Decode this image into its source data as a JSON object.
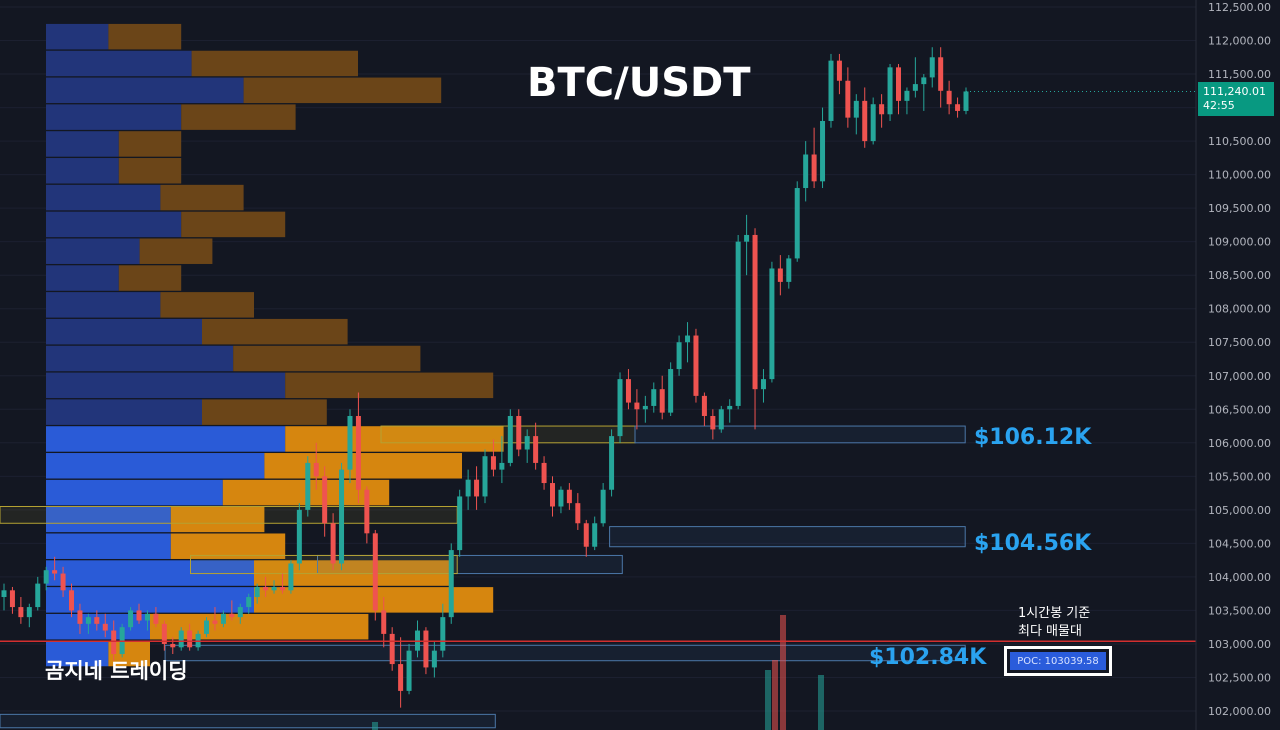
{
  "title": "BTC/USDT",
  "brand": "곰지네 트레이딩",
  "poc": {
    "note_line1": "1시간봉 기준",
    "note_line2": "최다 매물대",
    "label": "POC: 103039.58",
    "price": 103039.58
  },
  "last_price": {
    "value": "111,240.01",
    "countdown": "42:55",
    "price": 111240.01
  },
  "levels": [
    {
      "label": "$106.12K",
      "price": 106120
    },
    {
      "label": "$104.56K",
      "price": 104560
    },
    {
      "label": "$102.84K",
      "price": 102840
    }
  ],
  "colors": {
    "background": "#131722",
    "up": "#26a69a",
    "down": "#ef5350",
    "level_label": "#2aa3f0",
    "poc_line": "#d32f2f",
    "vp_buy": "#2a5bd7",
    "vp_sell": "#d6860f",
    "last_price_tag": "#089981"
  },
  "chart_data": {
    "type": "candlestick",
    "symbol": "BTC/USDT",
    "ylim": [
      101900,
      112600
    ],
    "y_ticks": [
      "112,500.00",
      "112,000.00",
      "111,500.00",
      "111,000.00",
      "110,500.00",
      "110,000.00",
      "109,500.00",
      "109,000.00",
      "108,500.00",
      "108,000.00",
      "107,500.00",
      "107,000.00",
      "106,500.00",
      "106,000.00",
      "105,500.00",
      "105,000.00",
      "104,500.00",
      "104,000.00",
      "103,500.00",
      "103,000.00",
      "102,500.00",
      "102,000.00"
    ],
    "volume_profile": [
      {
        "price": 112050,
        "buy": 6,
        "sell": 7
      },
      {
        "price": 111650,
        "buy": 14,
        "sell": 16
      },
      {
        "price": 111250,
        "buy": 19,
        "sell": 19
      },
      {
        "price": 110850,
        "buy": 13,
        "sell": 11
      },
      {
        "price": 110450,
        "buy": 7,
        "sell": 6
      },
      {
        "price": 110050,
        "buy": 7,
        "sell": 6
      },
      {
        "price": 109650,
        "buy": 11,
        "sell": 8
      },
      {
        "price": 109250,
        "buy": 13,
        "sell": 10
      },
      {
        "price": 108850,
        "buy": 9,
        "sell": 7
      },
      {
        "price": 108450,
        "buy": 7,
        "sell": 6
      },
      {
        "price": 108050,
        "buy": 11,
        "sell": 9
      },
      {
        "price": 107650,
        "buy": 15,
        "sell": 14
      },
      {
        "price": 107250,
        "buy": 18,
        "sell": 18
      },
      {
        "price": 106850,
        "buy": 23,
        "sell": 20
      },
      {
        "price": 106450,
        "buy": 15,
        "sell": 12
      },
      {
        "price": 106050,
        "buy": 23,
        "sell": 21
      },
      {
        "price": 105650,
        "buy": 21,
        "sell": 19
      },
      {
        "price": 105250,
        "buy": 17,
        "sell": 16
      },
      {
        "price": 104850,
        "buy": 12,
        "sell": 9
      },
      {
        "price": 104450,
        "buy": 12,
        "sell": 11
      },
      {
        "price": 104050,
        "buy": 20,
        "sell": 19
      },
      {
        "price": 103650,
        "buy": 20,
        "sell": 23
      },
      {
        "price": 103250,
        "buy": 10,
        "sell": 21
      },
      {
        "price": 102850,
        "buy": 6,
        "sell": 4
      }
    ],
    "zones": [
      {
        "kind": "yellow",
        "low": 106000,
        "high": 106250,
        "from": 0.3,
        "to": 0.5
      },
      {
        "kind": "blue",
        "low": 106000,
        "high": 106250,
        "from": 0.5,
        "to": 0.76
      },
      {
        "kind": "blue",
        "low": 104450,
        "high": 104750,
        "from": 0.48,
        "to": 0.76
      },
      {
        "kind": "yellow",
        "low": 104800,
        "high": 105050,
        "from": 0.0,
        "to": 0.36
      },
      {
        "kind": "blue",
        "low": 104050,
        "high": 104320,
        "from": 0.25,
        "to": 0.49
      },
      {
        "kind": "yellow",
        "low": 104050,
        "high": 104320,
        "from": 0.15,
        "to": 0.36
      },
      {
        "kind": "blue",
        "low": 102750,
        "high": 102980,
        "from": 0.13,
        "to": 0.76
      },
      {
        "kind": "blue",
        "low": 101750,
        "high": 101950,
        "from": 0.0,
        "to": 0.39
      }
    ],
    "candles": [
      [
        103700,
        103900,
        103500,
        103800
      ],
      [
        103800,
        103850,
        103450,
        103550
      ],
      [
        103550,
        103700,
        103300,
        103400
      ],
      [
        103400,
        103600,
        103250,
        103550
      ],
      [
        103550,
        104000,
        103500,
        103900
      ],
      [
        103900,
        104150,
        103800,
        104100
      ],
      [
        104100,
        104300,
        103950,
        104050
      ],
      [
        104050,
        104150,
        103700,
        103800
      ],
      [
        103800,
        103900,
        103400,
        103500
      ],
      [
        103500,
        103600,
        103150,
        103300
      ],
      [
        103300,
        103450,
        103150,
        103400
      ],
      [
        103400,
        103500,
        103200,
        103300
      ],
      [
        103300,
        103450,
        103100,
        103200
      ],
      [
        103200,
        103350,
        102750,
        102850
      ],
      [
        102850,
        103300,
        102800,
        103250
      ],
      [
        103250,
        103550,
        103200,
        103500
      ],
      [
        103500,
        103600,
        103300,
        103350
      ],
      [
        103350,
        103500,
        103200,
        103450
      ],
      [
        103450,
        103550,
        103250,
        103300
      ],
      [
        103300,
        103350,
        102900,
        103000
      ],
      [
        103000,
        103100,
        102850,
        102950
      ],
      [
        102950,
        103250,
        102900,
        103200
      ],
      [
        103200,
        103300,
        102900,
        102950
      ],
      [
        102950,
        103200,
        102900,
        103150
      ],
      [
        103150,
        103400,
        103100,
        103350
      ],
      [
        103350,
        103550,
        103200,
        103300
      ],
      [
        103300,
        103500,
        103250,
        103450
      ],
      [
        103450,
        103650,
        103350,
        103400
      ],
      [
        103400,
        103600,
        103300,
        103550
      ],
      [
        103550,
        103750,
        103450,
        103700
      ],
      [
        103700,
        103900,
        103600,
        103850
      ],
      [
        103850,
        104000,
        103700,
        103800
      ],
      [
        103800,
        103950,
        103750,
        103850
      ],
      [
        103850,
        104050,
        103750,
        103800
      ],
      [
        103800,
        104250,
        103750,
        104200
      ],
      [
        104200,
        105100,
        104100,
        105000
      ],
      [
        105000,
        105800,
        104900,
        105700
      ],
      [
        105700,
        106000,
        105300,
        105500
      ],
      [
        105500,
        105650,
        104600,
        104800
      ],
      [
        104800,
        104950,
        104100,
        104200
      ],
      [
        104200,
        105700,
        104100,
        105600
      ],
      [
        105600,
        106500,
        105400,
        106400
      ],
      [
        106400,
        106750,
        105100,
        105300
      ],
      [
        105300,
        105350,
        104500,
        104650
      ],
      [
        104650,
        104700,
        103350,
        103500
      ],
      [
        103500,
        103700,
        102950,
        103150
      ],
      [
        103150,
        103250,
        102600,
        102700
      ],
      [
        102700,
        103100,
        102050,
        102300
      ],
      [
        102300,
        103000,
        102250,
        102900
      ],
      [
        102900,
        103350,
        102800,
        103200
      ],
      [
        103200,
        103250,
        102550,
        102650
      ],
      [
        102650,
        103050,
        102500,
        102900
      ],
      [
        102900,
        103600,
        102800,
        103400
      ],
      [
        103400,
        104500,
        103300,
        104400
      ],
      [
        104400,
        105300,
        104300,
        105200
      ],
      [
        105200,
        105600,
        105000,
        105450
      ],
      [
        105450,
        105650,
        105000,
        105200
      ],
      [
        105200,
        105900,
        105100,
        105800
      ],
      [
        105800,
        106050,
        105500,
        105600
      ],
      [
        105600,
        106100,
        105400,
        105700
      ],
      [
        105700,
        106500,
        105650,
        106400
      ],
      [
        106400,
        106500,
        105800,
        105900
      ],
      [
        105900,
        106200,
        105700,
        106100
      ],
      [
        106100,
        106300,
        105600,
        105700
      ],
      [
        105700,
        105800,
        105300,
        105400
      ],
      [
        105400,
        105500,
        104900,
        105050
      ],
      [
        105050,
        105350,
        104950,
        105300
      ],
      [
        105300,
        105400,
        105000,
        105100
      ],
      [
        105100,
        105250,
        104700,
        104800
      ],
      [
        104800,
        104850,
        104300,
        104450
      ],
      [
        104450,
        104900,
        104400,
        104800
      ],
      [
        104800,
        105400,
        104750,
        105300
      ],
      [
        105300,
        106200,
        105200,
        106100
      ],
      [
        106100,
        107050,
        106000,
        106950
      ],
      [
        106950,
        107100,
        106500,
        106600
      ],
      [
        106600,
        106800,
        106200,
        106500
      ],
      [
        106500,
        106700,
        106300,
        106550
      ],
      [
        106550,
        106900,
        106450,
        106800
      ],
      [
        106800,
        107000,
        106350,
        106450
      ],
      [
        106450,
        107200,
        106400,
        107100
      ],
      [
        107100,
        107600,
        107000,
        107500
      ],
      [
        107500,
        107800,
        107200,
        107600
      ],
      [
        107600,
        107700,
        106600,
        106700
      ],
      [
        106700,
        106750,
        106250,
        106400
      ],
      [
        106400,
        106500,
        106050,
        106200
      ],
      [
        106200,
        106550,
        106150,
        106500
      ],
      [
        106500,
        106650,
        106300,
        106550
      ],
      [
        106550,
        109100,
        106500,
        109000
      ],
      [
        109000,
        109400,
        108500,
        109100
      ],
      [
        109100,
        109200,
        106200,
        106800
      ],
      [
        106800,
        107100,
        106600,
        106950
      ],
      [
        106950,
        108700,
        106900,
        108600
      ],
      [
        108600,
        108800,
        108200,
        108400
      ],
      [
        108400,
        108800,
        108300,
        108750
      ],
      [
        108750,
        109900,
        108700,
        109800
      ],
      [
        109800,
        110500,
        109600,
        110300
      ],
      [
        110300,
        110700,
        109800,
        109900
      ],
      [
        109900,
        111000,
        109800,
        110800
      ],
      [
        110800,
        111800,
        110700,
        111700
      ],
      [
        111700,
        111800,
        111200,
        111400
      ],
      [
        111400,
        111600,
        110700,
        110850
      ],
      [
        110850,
        111200,
        110600,
        111100
      ],
      [
        111100,
        111300,
        110400,
        110500
      ],
      [
        110500,
        111150,
        110450,
        111050
      ],
      [
        111050,
        111200,
        110700,
        110900
      ],
      [
        110900,
        111650,
        110800,
        111600
      ],
      [
        111600,
        111650,
        110900,
        111100
      ],
      [
        111100,
        111300,
        110900,
        111250
      ],
      [
        111250,
        111750,
        111150,
        111350
      ],
      [
        111350,
        111500,
        110950,
        111450
      ],
      [
        111450,
        111900,
        111300,
        111750
      ],
      [
        111750,
        111900,
        111000,
        111250
      ],
      [
        111250,
        111400,
        110900,
        111050
      ],
      [
        111050,
        111150,
        110850,
        110950
      ],
      [
        110950,
        111300,
        110900,
        111240
      ]
    ]
  }
}
